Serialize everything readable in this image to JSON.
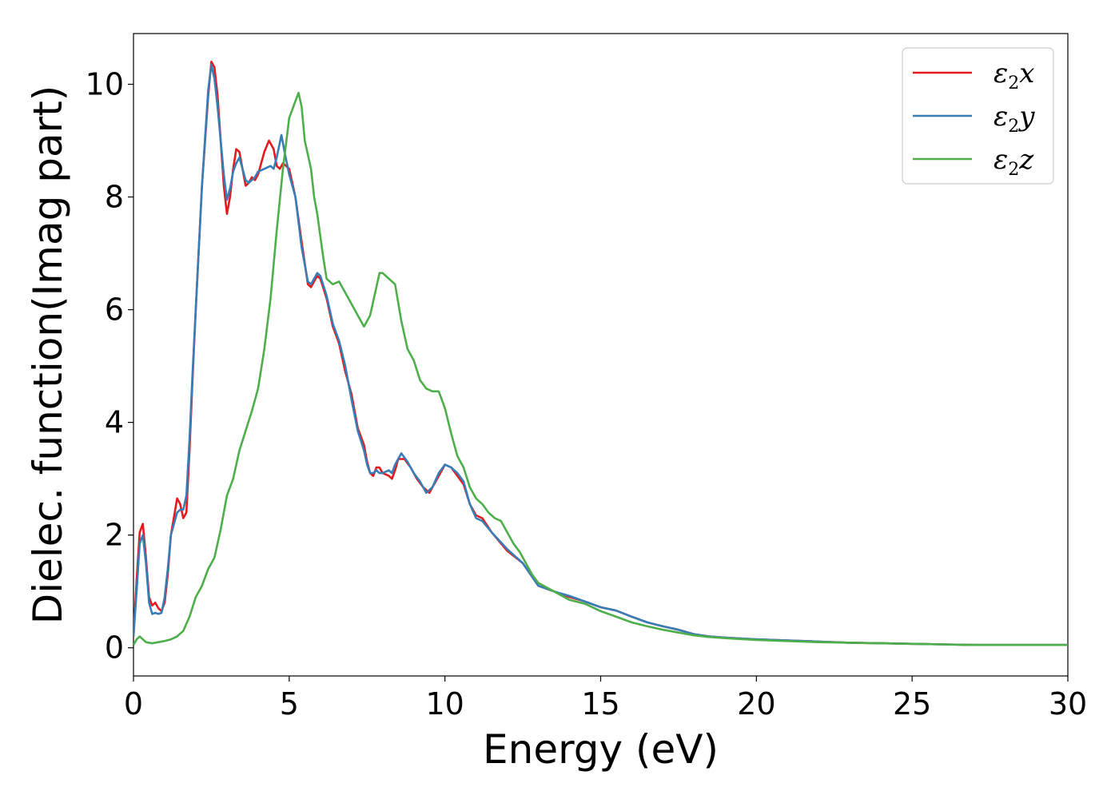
{
  "chart_data": {
    "type": "line",
    "title": "",
    "xlabel": "Energy (eV)",
    "ylabel": "Dielec. function(Imag part)",
    "xlim": [
      0,
      30
    ],
    "ylim": [
      -0.5,
      10.9
    ],
    "xticks": [
      0,
      5,
      10,
      15,
      20,
      25,
      30
    ],
    "yticks": [
      0,
      2,
      4,
      6,
      8,
      10
    ],
    "grid": false,
    "legend_position": "top-right",
    "series": [
      {
        "name": "ε2x",
        "legend_base": "ε",
        "legend_sub": "2",
        "legend_tail": "x",
        "color": "#e41a1c",
        "points": [
          [
            0,
            0.2
          ],
          [
            0.1,
            1.2
          ],
          [
            0.2,
            2.05
          ],
          [
            0.3,
            2.2
          ],
          [
            0.4,
            1.6
          ],
          [
            0.5,
            0.9
          ],
          [
            0.6,
            0.75
          ],
          [
            0.7,
            0.8
          ],
          [
            0.8,
            0.7
          ],
          [
            0.9,
            0.65
          ],
          [
            1.0,
            0.8
          ],
          [
            1.1,
            1.3
          ],
          [
            1.2,
            2.0
          ],
          [
            1.4,
            2.65
          ],
          [
            1.5,
            2.55
          ],
          [
            1.6,
            2.3
          ],
          [
            1.7,
            2.4
          ],
          [
            1.8,
            3.5
          ],
          [
            1.9,
            4.8
          ],
          [
            2.0,
            6.0
          ],
          [
            2.2,
            8.2
          ],
          [
            2.4,
            9.8
          ],
          [
            2.5,
            10.4
          ],
          [
            2.6,
            10.3
          ],
          [
            2.7,
            9.8
          ],
          [
            2.8,
            9.0
          ],
          [
            2.9,
            8.2
          ],
          [
            3.0,
            7.7
          ],
          [
            3.1,
            8.0
          ],
          [
            3.2,
            8.5
          ],
          [
            3.3,
            8.85
          ],
          [
            3.4,
            8.8
          ],
          [
            3.5,
            8.5
          ],
          [
            3.6,
            8.2
          ],
          [
            3.7,
            8.25
          ],
          [
            3.8,
            8.35
          ],
          [
            3.9,
            8.3
          ],
          [
            4.0,
            8.4
          ],
          [
            4.2,
            8.8
          ],
          [
            4.35,
            9.0
          ],
          [
            4.5,
            8.85
          ],
          [
            4.6,
            8.55
          ],
          [
            4.7,
            8.5
          ],
          [
            4.8,
            8.6
          ],
          [
            4.9,
            8.55
          ],
          [
            5.0,
            8.5
          ],
          [
            5.2,
            8.0
          ],
          [
            5.4,
            7.2
          ],
          [
            5.6,
            6.45
          ],
          [
            5.7,
            6.4
          ],
          [
            5.8,
            6.5
          ],
          [
            5.9,
            6.6
          ],
          [
            6.0,
            6.55
          ],
          [
            6.2,
            6.2
          ],
          [
            6.4,
            5.7
          ],
          [
            6.6,
            5.4
          ],
          [
            6.8,
            4.9
          ],
          [
            7.0,
            4.5
          ],
          [
            7.2,
            3.9
          ],
          [
            7.4,
            3.6
          ],
          [
            7.5,
            3.3
          ],
          [
            7.6,
            3.1
          ],
          [
            7.7,
            3.05
          ],
          [
            7.8,
            3.2
          ],
          [
            7.9,
            3.2
          ],
          [
            8.0,
            3.1
          ],
          [
            8.2,
            3.05
          ],
          [
            8.3,
            3.0
          ],
          [
            8.4,
            3.15
          ],
          [
            8.5,
            3.35
          ],
          [
            8.7,
            3.35
          ],
          [
            8.9,
            3.2
          ],
          [
            9.1,
            3.0
          ],
          [
            9.3,
            2.85
          ],
          [
            9.5,
            2.75
          ],
          [
            9.7,
            2.95
          ],
          [
            9.9,
            3.15
          ],
          [
            10.0,
            3.25
          ],
          [
            10.2,
            3.2
          ],
          [
            10.4,
            3.05
          ],
          [
            10.6,
            2.9
          ],
          [
            10.8,
            2.55
          ],
          [
            11.0,
            2.35
          ],
          [
            11.2,
            2.3
          ],
          [
            11.5,
            2.05
          ],
          [
            12.0,
            1.72
          ],
          [
            12.5,
            1.5
          ],
          [
            13.0,
            1.1
          ],
          [
            13.5,
            1.0
          ],
          [
            14.0,
            0.9
          ],
          [
            14.5,
            0.82
          ],
          [
            15.0,
            0.72
          ],
          [
            15.5,
            0.66
          ],
          [
            16.0,
            0.55
          ],
          [
            16.5,
            0.45
          ],
          [
            17.0,
            0.38
          ],
          [
            17.5,
            0.32
          ],
          [
            18.0,
            0.24
          ],
          [
            18.5,
            0.2
          ],
          [
            19.0,
            0.18
          ],
          [
            20.0,
            0.15
          ],
          [
            21.0,
            0.13
          ],
          [
            22.0,
            0.11
          ],
          [
            23.0,
            0.09
          ],
          [
            24.0,
            0.08
          ],
          [
            25.0,
            0.07
          ],
          [
            26.0,
            0.06
          ],
          [
            27.0,
            0.05
          ],
          [
            28.0,
            0.05
          ],
          [
            29.0,
            0.05
          ],
          [
            30.0,
            0.05
          ]
        ]
      },
      {
        "name": "ε2y",
        "legend_base": "ε",
        "legend_sub": "2",
        "legend_tail": "y",
        "color": "#377eb8",
        "points": [
          [
            0,
            0.2
          ],
          [
            0.1,
            1.0
          ],
          [
            0.2,
            1.85
          ],
          [
            0.3,
            2.0
          ],
          [
            0.4,
            1.5
          ],
          [
            0.5,
            0.8
          ],
          [
            0.6,
            0.6
          ],
          [
            0.7,
            0.62
          ],
          [
            0.8,
            0.6
          ],
          [
            0.9,
            0.62
          ],
          [
            1.0,
            0.9
          ],
          [
            1.1,
            1.4
          ],
          [
            1.2,
            2.0
          ],
          [
            1.4,
            2.4
          ],
          [
            1.5,
            2.45
          ],
          [
            1.6,
            2.45
          ],
          [
            1.7,
            2.7
          ],
          [
            1.8,
            3.7
          ],
          [
            1.9,
            4.9
          ],
          [
            2.0,
            6.0
          ],
          [
            2.2,
            8.2
          ],
          [
            2.4,
            9.9
          ],
          [
            2.5,
            10.35
          ],
          [
            2.6,
            10.1
          ],
          [
            2.7,
            9.6
          ],
          [
            2.8,
            9.0
          ],
          [
            2.9,
            8.4
          ],
          [
            3.0,
            7.95
          ],
          [
            3.1,
            8.15
          ],
          [
            3.2,
            8.45
          ],
          [
            3.3,
            8.6
          ],
          [
            3.4,
            8.7
          ],
          [
            3.5,
            8.5
          ],
          [
            3.6,
            8.3
          ],
          [
            3.7,
            8.25
          ],
          [
            3.8,
            8.3
          ],
          [
            3.9,
            8.35
          ],
          [
            4.0,
            8.45
          ],
          [
            4.2,
            8.5
          ],
          [
            4.4,
            8.55
          ],
          [
            4.5,
            8.5
          ],
          [
            4.6,
            8.7
          ],
          [
            4.75,
            9.1
          ],
          [
            4.85,
            8.8
          ],
          [
            5.0,
            8.4
          ],
          [
            5.2,
            8.0
          ],
          [
            5.4,
            7.1
          ],
          [
            5.6,
            6.5
          ],
          [
            5.7,
            6.45
          ],
          [
            5.8,
            6.55
          ],
          [
            5.9,
            6.65
          ],
          [
            6.0,
            6.6
          ],
          [
            6.2,
            6.25
          ],
          [
            6.4,
            5.75
          ],
          [
            6.6,
            5.45
          ],
          [
            6.8,
            5.0
          ],
          [
            7.0,
            4.4
          ],
          [
            7.2,
            3.85
          ],
          [
            7.4,
            3.5
          ],
          [
            7.5,
            3.25
          ],
          [
            7.6,
            3.1
          ],
          [
            7.7,
            3.1
          ],
          [
            7.8,
            3.15
          ],
          [
            7.9,
            3.1
          ],
          [
            8.0,
            3.1
          ],
          [
            8.2,
            3.15
          ],
          [
            8.3,
            3.1
          ],
          [
            8.4,
            3.25
          ],
          [
            8.6,
            3.45
          ],
          [
            8.8,
            3.3
          ],
          [
            9.0,
            3.1
          ],
          [
            9.2,
            2.95
          ],
          [
            9.4,
            2.75
          ],
          [
            9.6,
            2.85
          ],
          [
            9.8,
            3.1
          ],
          [
            10.0,
            3.25
          ],
          [
            10.2,
            3.2
          ],
          [
            10.4,
            3.1
          ],
          [
            10.6,
            2.95
          ],
          [
            10.8,
            2.55
          ],
          [
            11.0,
            2.3
          ],
          [
            11.2,
            2.25
          ],
          [
            11.5,
            2.05
          ],
          [
            12.0,
            1.75
          ],
          [
            12.5,
            1.5
          ],
          [
            13.0,
            1.1
          ],
          [
            13.5,
            1.0
          ],
          [
            14.0,
            0.92
          ],
          [
            14.5,
            0.82
          ],
          [
            15.0,
            0.72
          ],
          [
            15.5,
            0.66
          ],
          [
            16.0,
            0.55
          ],
          [
            16.5,
            0.45
          ],
          [
            17.0,
            0.38
          ],
          [
            17.5,
            0.32
          ],
          [
            18.0,
            0.24
          ],
          [
            18.5,
            0.2
          ],
          [
            19.0,
            0.18
          ],
          [
            20.0,
            0.15
          ],
          [
            21.0,
            0.13
          ],
          [
            22.0,
            0.11
          ],
          [
            23.0,
            0.09
          ],
          [
            24.0,
            0.08
          ],
          [
            25.0,
            0.07
          ],
          [
            26.0,
            0.06
          ],
          [
            27.0,
            0.05
          ],
          [
            28.0,
            0.05
          ],
          [
            29.0,
            0.05
          ],
          [
            30.0,
            0.05
          ]
        ]
      },
      {
        "name": "ε2z",
        "legend_base": "ε",
        "legend_sub": "2",
        "legend_tail": "z",
        "color": "#4daf4a",
        "points": [
          [
            0,
            0.05
          ],
          [
            0.1,
            0.15
          ],
          [
            0.2,
            0.2
          ],
          [
            0.3,
            0.15
          ],
          [
            0.4,
            0.1
          ],
          [
            0.6,
            0.08
          ],
          [
            0.8,
            0.1
          ],
          [
            1.0,
            0.12
          ],
          [
            1.2,
            0.15
          ],
          [
            1.4,
            0.2
          ],
          [
            1.6,
            0.3
          ],
          [
            1.8,
            0.55
          ],
          [
            2.0,
            0.9
          ],
          [
            2.2,
            1.1
          ],
          [
            2.4,
            1.4
          ],
          [
            2.6,
            1.6
          ],
          [
            2.8,
            2.1
          ],
          [
            3.0,
            2.7
          ],
          [
            3.2,
            3.0
          ],
          [
            3.4,
            3.5
          ],
          [
            3.6,
            3.85
          ],
          [
            3.8,
            4.2
          ],
          [
            4.0,
            4.6
          ],
          [
            4.2,
            5.3
          ],
          [
            4.4,
            6.2
          ],
          [
            4.6,
            7.4
          ],
          [
            4.8,
            8.5
          ],
          [
            5.0,
            9.4
          ],
          [
            5.1,
            9.55
          ],
          [
            5.2,
            9.7
          ],
          [
            5.3,
            9.85
          ],
          [
            5.4,
            9.6
          ],
          [
            5.5,
            9.0
          ],
          [
            5.6,
            8.75
          ],
          [
            5.7,
            8.5
          ],
          [
            5.8,
            8.0
          ],
          [
            5.9,
            7.7
          ],
          [
            6.0,
            7.3
          ],
          [
            6.1,
            6.9
          ],
          [
            6.2,
            6.55
          ],
          [
            6.4,
            6.45
          ],
          [
            6.6,
            6.5
          ],
          [
            6.8,
            6.3
          ],
          [
            7.0,
            6.1
          ],
          [
            7.2,
            5.9
          ],
          [
            7.4,
            5.7
          ],
          [
            7.6,
            5.9
          ],
          [
            7.8,
            6.4
          ],
          [
            7.9,
            6.65
          ],
          [
            8.0,
            6.65
          ],
          [
            8.2,
            6.55
          ],
          [
            8.4,
            6.45
          ],
          [
            8.6,
            5.8
          ],
          [
            8.8,
            5.3
          ],
          [
            9.0,
            5.1
          ],
          [
            9.2,
            4.75
          ],
          [
            9.4,
            4.6
          ],
          [
            9.6,
            4.55
          ],
          [
            9.8,
            4.55
          ],
          [
            10.0,
            4.25
          ],
          [
            10.2,
            3.8
          ],
          [
            10.4,
            3.4
          ],
          [
            10.6,
            3.2
          ],
          [
            10.8,
            2.85
          ],
          [
            11.0,
            2.65
          ],
          [
            11.2,
            2.55
          ],
          [
            11.4,
            2.4
          ],
          [
            11.6,
            2.3
          ],
          [
            11.8,
            2.25
          ],
          [
            12.0,
            2.05
          ],
          [
            12.2,
            1.85
          ],
          [
            12.4,
            1.7
          ],
          [
            12.6,
            1.5
          ],
          [
            12.8,
            1.3
          ],
          [
            13.0,
            1.15
          ],
          [
            13.5,
            1.0
          ],
          [
            14.0,
            0.85
          ],
          [
            14.5,
            0.78
          ],
          [
            15.0,
            0.65
          ],
          [
            15.5,
            0.55
          ],
          [
            16.0,
            0.45
          ],
          [
            16.5,
            0.38
          ],
          [
            17.0,
            0.32
          ],
          [
            17.5,
            0.27
          ],
          [
            18.0,
            0.22
          ],
          [
            18.5,
            0.19
          ],
          [
            19.0,
            0.17
          ],
          [
            20.0,
            0.14
          ],
          [
            21.0,
            0.12
          ],
          [
            22.0,
            0.1
          ],
          [
            23.0,
            0.09
          ],
          [
            24.0,
            0.08
          ],
          [
            25.0,
            0.07
          ],
          [
            26.0,
            0.06
          ],
          [
            27.0,
            0.05
          ],
          [
            28.0,
            0.05
          ],
          [
            29.0,
            0.05
          ],
          [
            30.0,
            0.05
          ]
        ]
      }
    ]
  }
}
